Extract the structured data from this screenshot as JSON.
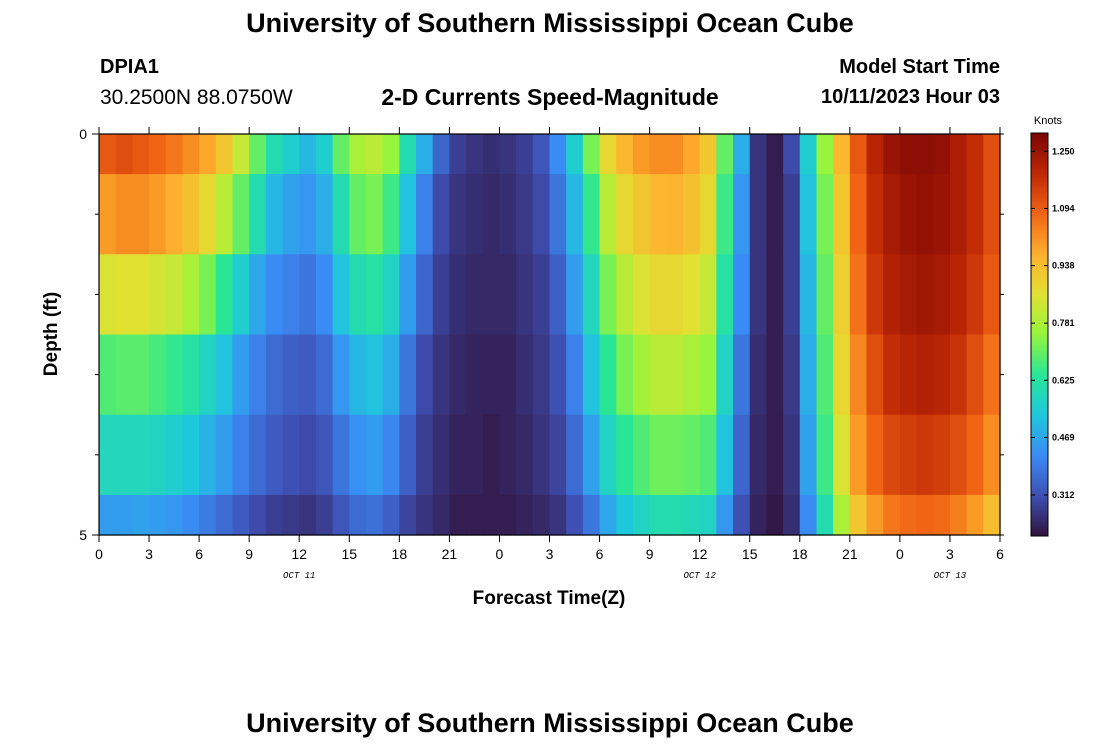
{
  "header": {
    "title": "University of Southern Mississippi Ocean Cube",
    "station_id": "DPIA1",
    "coords": "30.2500N  88.0750W",
    "plot_title": "2-D Currents Speed-Magnitude",
    "model_start_label": "Model Start Time",
    "model_start_value": "10/11/2023 Hour 03"
  },
  "footer": {
    "title": "University of Southern Mississippi Ocean Cube"
  },
  "chart_data": {
    "type": "heatmap",
    "title": "2-D Currents Speed-Magnitude",
    "xlabel": "Forecast Time(Z)",
    "ylabel": "Depth (ft)",
    "x_tick_labels": [
      "0",
      "3",
      "6",
      "9",
      "12",
      "15",
      "18",
      "21",
      "0",
      "3",
      "6",
      "9",
      "12",
      "15",
      "18",
      "21",
      "0",
      "3",
      "6"
    ],
    "x_date_labels": [
      {
        "label": "OCT 11",
        "tick_index": 4
      },
      {
        "label": "OCT 12",
        "tick_index": 12
      },
      {
        "label": "OCT 13",
        "tick_index": 17
      }
    ],
    "y_tick_labels": [
      "0",
      "5"
    ],
    "ylim": [
      0,
      5
    ],
    "x_range_hours": [
      0,
      54
    ],
    "colorbar": {
      "units": "Knots",
      "tick_labels": [
        "1.250",
        "1.094",
        "0.938",
        "0.781",
        "0.625",
        "0.469",
        "0.312"
      ],
      "tick_values": [
        1.25,
        1.094,
        0.938,
        0.781,
        0.625,
        0.469,
        0.312
      ],
      "range": [
        0.2,
        1.3
      ],
      "colormap": "turbo"
    },
    "depth_levels": [
      "L1",
      "L2",
      "L3",
      "L4",
      "L5",
      "L6"
    ],
    "depth_level_fraction": [
      0.1,
      0.2,
      0.2,
      0.2,
      0.2,
      0.1
    ],
    "hours": [
      0,
      1,
      2,
      3,
      4,
      5,
      6,
      7,
      8,
      9,
      10,
      11,
      12,
      13,
      14,
      15,
      16,
      17,
      18,
      19,
      20,
      21,
      22,
      23,
      24,
      25,
      26,
      27,
      28,
      29,
      30,
      31,
      32,
      33,
      34,
      35,
      36,
      37,
      38,
      39,
      40,
      41,
      42,
      43,
      44,
      45,
      46,
      47,
      48,
      49,
      50,
      51,
      52,
      53,
      54
    ],
    "speed": {
      "L1": [
        1.1,
        1.12,
        1.1,
        1.08,
        1.05,
        1.02,
        0.98,
        0.92,
        0.82,
        0.7,
        0.6,
        0.55,
        0.5,
        0.55,
        0.7,
        0.78,
        0.8,
        0.75,
        0.6,
        0.48,
        0.35,
        0.28,
        0.26,
        0.25,
        0.26,
        0.28,
        0.32,
        0.42,
        0.55,
        0.72,
        0.88,
        0.95,
        1.0,
        1.02,
        1.02,
        0.98,
        0.92,
        0.7,
        0.48,
        0.26,
        0.22,
        0.3,
        0.55,
        0.75,
        0.95,
        1.1,
        1.2,
        1.25,
        1.27,
        1.27,
        1.26,
        1.22,
        1.18,
        1.12,
        1.05
      ],
      "L2": [
        1.0,
        1.02,
        1.02,
        1.0,
        0.97,
        0.93,
        0.88,
        0.8,
        0.7,
        0.6,
        0.5,
        0.46,
        0.44,
        0.48,
        0.6,
        0.7,
        0.72,
        0.66,
        0.52,
        0.4,
        0.3,
        0.26,
        0.25,
        0.24,
        0.25,
        0.27,
        0.3,
        0.38,
        0.5,
        0.65,
        0.8,
        0.88,
        0.92,
        0.95,
        0.96,
        0.93,
        0.88,
        0.66,
        0.44,
        0.26,
        0.22,
        0.28,
        0.52,
        0.72,
        0.92,
        1.08,
        1.18,
        1.23,
        1.25,
        1.26,
        1.25,
        1.22,
        1.18,
        1.12,
        1.05
      ],
      "L3": [
        0.85,
        0.86,
        0.86,
        0.84,
        0.82,
        0.78,
        0.72,
        0.64,
        0.55,
        0.47,
        0.42,
        0.4,
        0.38,
        0.42,
        0.52,
        0.6,
        0.62,
        0.57,
        0.45,
        0.35,
        0.28,
        0.25,
        0.24,
        0.24,
        0.24,
        0.26,
        0.28,
        0.34,
        0.45,
        0.58,
        0.72,
        0.8,
        0.85,
        0.88,
        0.88,
        0.86,
        0.82,
        0.62,
        0.42,
        0.26,
        0.22,
        0.28,
        0.5,
        0.7,
        0.9,
        1.06,
        1.16,
        1.21,
        1.23,
        1.24,
        1.23,
        1.2,
        1.16,
        1.1,
        1.02
      ],
      "L4": [
        0.68,
        0.69,
        0.69,
        0.67,
        0.65,
        0.62,
        0.57,
        0.52,
        0.45,
        0.4,
        0.36,
        0.34,
        0.33,
        0.36,
        0.44,
        0.5,
        0.52,
        0.48,
        0.38,
        0.3,
        0.26,
        0.24,
        0.23,
        0.23,
        0.23,
        0.25,
        0.27,
        0.31,
        0.4,
        0.52,
        0.64,
        0.72,
        0.77,
        0.8,
        0.8,
        0.78,
        0.75,
        0.57,
        0.38,
        0.25,
        0.22,
        0.27,
        0.48,
        0.68,
        0.88,
        1.03,
        1.12,
        1.18,
        1.2,
        1.21,
        1.2,
        1.17,
        1.12,
        1.06,
        0.98
      ],
      "L5": [
        0.58,
        0.58,
        0.58,
        0.57,
        0.55,
        0.53,
        0.49,
        0.45,
        0.4,
        0.36,
        0.33,
        0.31,
        0.3,
        0.32,
        0.38,
        0.43,
        0.45,
        0.41,
        0.34,
        0.28,
        0.25,
        0.23,
        0.23,
        0.22,
        0.23,
        0.24,
        0.26,
        0.29,
        0.36,
        0.46,
        0.57,
        0.64,
        0.68,
        0.71,
        0.71,
        0.7,
        0.68,
        0.52,
        0.35,
        0.24,
        0.22,
        0.26,
        0.46,
        0.66,
        0.85,
        1.0,
        1.08,
        1.13,
        1.15,
        1.16,
        1.15,
        1.12,
        1.08,
        1.02,
        0.94
      ],
      "L6": [
        0.45,
        0.45,
        0.46,
        0.45,
        0.44,
        0.42,
        0.39,
        0.36,
        0.33,
        0.3,
        0.28,
        0.27,
        0.26,
        0.28,
        0.32,
        0.36,
        0.37,
        0.34,
        0.29,
        0.26,
        0.24,
        0.22,
        0.22,
        0.22,
        0.22,
        0.23,
        0.24,
        0.26,
        0.31,
        0.38,
        0.47,
        0.53,
        0.57,
        0.6,
        0.6,
        0.59,
        0.57,
        0.44,
        0.31,
        0.23,
        0.21,
        0.25,
        0.42,
        0.6,
        0.78,
        0.92,
        1.0,
        1.05,
        1.07,
        1.08,
        1.07,
        1.04,
        1.0,
        0.94,
        0.86
      ]
    }
  }
}
